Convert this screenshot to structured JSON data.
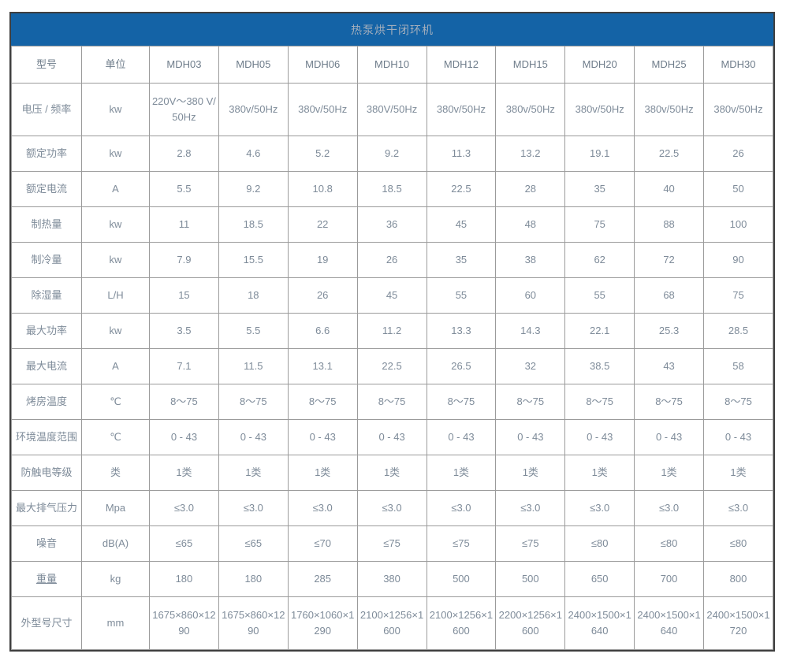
{
  "title": "热泵烘干闭环机",
  "colors": {
    "header_bg": "#1463a6",
    "header_text": "#a3aebc",
    "head_row_text": "#6e7c8a",
    "cell_text": "#7e8b99",
    "border_inner": "#9b9b9b",
    "border_outer": "#3f3f3f"
  },
  "table": {
    "header": [
      "型号",
      "单位",
      "MDH03",
      "MDH05",
      "MDH06",
      "MDH10",
      "MDH12",
      "MDH15",
      "MDH20",
      "MDH25",
      "MDH30"
    ],
    "rows": [
      {
        "label": "电压 / 频率",
        "unit": "kw",
        "values": [
          "220V～380 V/50Hz",
          "380v/50Hz",
          "380v/50Hz",
          "380V/50Hz",
          "380v/50Hz",
          "380v/50Hz",
          "380v/50Hz",
          "380v/50Hz",
          "380v/50Hz"
        ]
      },
      {
        "label": "额定功率",
        "unit": "kw",
        "values": [
          "2.8",
          "4.6",
          "5.2",
          "9.2",
          "11.3",
          "13.2",
          "19.1",
          "22.5",
          "26"
        ]
      },
      {
        "label": "额定电流",
        "unit": "A",
        "values": [
          "5.5",
          "9.2",
          "10.8",
          "18.5",
          "22.5",
          "28",
          "35",
          "40",
          "50"
        ]
      },
      {
        "label": "制热量",
        "unit": "kw",
        "values": [
          "11",
          "18.5",
          "22",
          "36",
          "45",
          "48",
          "75",
          "88",
          "100"
        ]
      },
      {
        "label": "制冷量",
        "unit": "kw",
        "values": [
          "7.9",
          "15.5",
          "19",
          "26",
          "35",
          "38",
          "62",
          "72",
          "90"
        ]
      },
      {
        "label": "除湿量",
        "unit": "L/H",
        "values": [
          "15",
          "18",
          "26",
          "45",
          "55",
          "60",
          "55",
          "68",
          "75"
        ]
      },
      {
        "label": "最大功率",
        "unit": "kw",
        "values": [
          "3.5",
          "5.5",
          "6.6",
          "11.2",
          "13.3",
          "14.3",
          "22.1",
          "25.3",
          "28.5"
        ]
      },
      {
        "label": "最大电流",
        "unit": "A",
        "values": [
          "7.1",
          "11.5",
          "13.1",
          "22.5",
          "26.5",
          "32",
          "38.5",
          "43",
          "58"
        ]
      },
      {
        "label": "烤房温度",
        "unit": "℃",
        "values": [
          "8～75",
          "8～75",
          "8～75",
          "8～75",
          "8～75",
          "8～75",
          "8～75",
          "8～75",
          "8～75"
        ]
      },
      {
        "label": "环境温度范围",
        "unit": "℃",
        "values": [
          "0 - 43",
          "0 - 43",
          "0 - 43",
          "0 - 43",
          "0 - 43",
          "0 - 43",
          "0 - 43",
          "0 - 43",
          "0 - 43"
        ]
      },
      {
        "label": "防触电等级",
        "unit": "类",
        "values": [
          "1类",
          "1类",
          "1类",
          "1类",
          "1类",
          "1类",
          "1类",
          "1类",
          "1类"
        ]
      },
      {
        "label": "最大排气压力",
        "unit": "Mpa",
        "values": [
          "≤3.0",
          "≤3.0",
          "≤3.0",
          "≤3.0",
          "≤3.0",
          "≤3.0",
          "≤3.0",
          "≤3.0",
          "≤3.0"
        ]
      },
      {
        "label": "噪音",
        "unit": "dB(A)",
        "values": [
          "≤65",
          "≤65",
          "≤70",
          "≤75",
          "≤75",
          "≤75",
          "≤80",
          "≤80",
          "≤80"
        ]
      },
      {
        "label": "重量",
        "unit": "kg",
        "underline": true,
        "values": [
          "180",
          "180",
          "285",
          "380",
          "500",
          "500",
          "650",
          "700",
          "800"
        ]
      },
      {
        "label": "外型号尺寸",
        "unit": "mm",
        "values": [
          "1675×860×1290",
          "1675×860×1290",
          "1760×1060×1290",
          "2100×1256×1600",
          "2100×1256×1600",
          "2200×1256×1600",
          "2400×1500×1640",
          "2400×1500×1640",
          "2400×1500×1720"
        ]
      }
    ]
  }
}
